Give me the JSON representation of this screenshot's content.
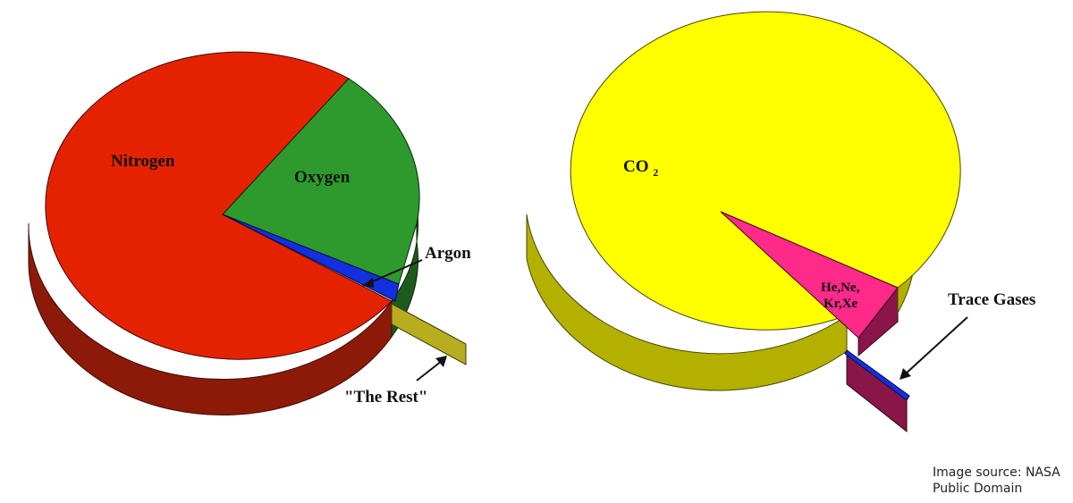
{
  "chart_data": [
    {
      "type": "pie",
      "title": "",
      "slices": [
        {
          "label": "Nitrogen",
          "value": 78.08,
          "color": "#e52200",
          "side": "#8c1a08"
        },
        {
          "label": "Oxygen",
          "value": 20.95,
          "color": "#2e9a2e",
          "side": "#1d5a1d"
        },
        {
          "label": "Argon",
          "value": 0.93,
          "color": "#1230e0",
          "side": "#0a1a80"
        },
        {
          "label": "\"The Rest\"",
          "value": 0.04,
          "color": "#c9c330",
          "side": "#7a7418",
          "exploded": true
        }
      ]
    },
    {
      "type": "pie",
      "title": "",
      "slices": [
        {
          "label": "CO",
          "label_sub": "2",
          "value": 92.6,
          "color": "#ffff00",
          "side": "#b3b000"
        },
        {
          "label": "He,Ne,",
          "label_line2": "Kr,Xe",
          "value": 5.0,
          "color": "#ff2a8a",
          "side": "#8a1548"
        },
        {
          "label": "Trace Gases",
          "value": 1.0,
          "color": "#1230e0",
          "side": "#0a1a80",
          "exploded": true
        }
      ]
    }
  ],
  "caption": {
    "line1": "Image source: NASA",
    "line2": "Public Domain"
  }
}
